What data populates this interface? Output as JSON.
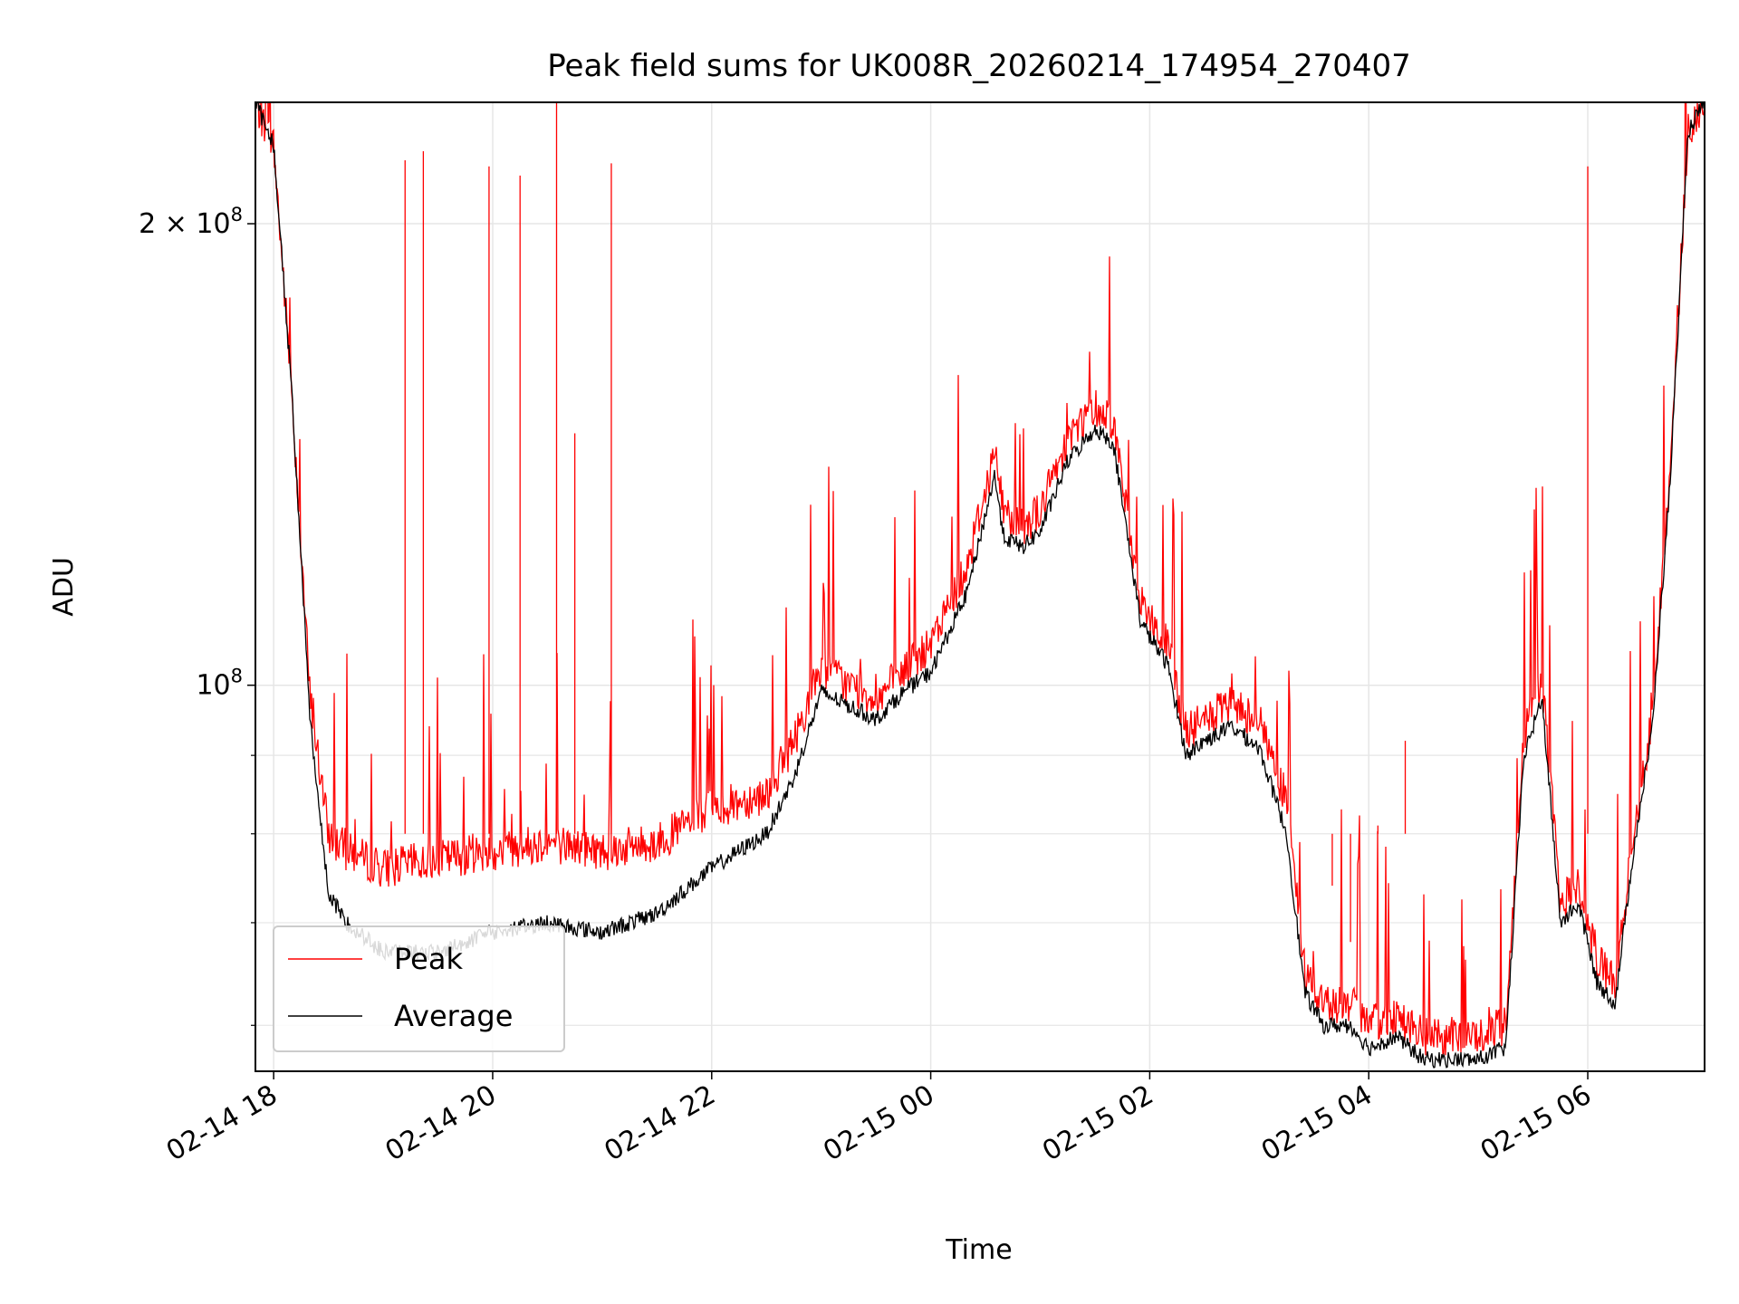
{
  "chart_data": {
    "type": "line",
    "title": "Peak field sums for UK008R_20260214_174954_270407",
    "xlabel": "Time",
    "ylabel": "ADU",
    "yscale": "log",
    "grid": true,
    "legend_position": "lower-left",
    "xlim": [
      "2026-02-14 17:50",
      "2026-02-15 07:04"
    ],
    "ylim": [
      56000000,
      240000000
    ],
    "x_ticks": [
      "02-14 18",
      "02-14 20",
      "02-14 22",
      "02-15 00",
      "02-15 02",
      "02-15 04",
      "02-15 06"
    ],
    "x_tick_times": [
      "2026-02-14 18:00",
      "2026-02-14 20:00",
      "2026-02-14 22:00",
      "2026-02-15 00:00",
      "2026-02-15 02:00",
      "2026-02-15 04:00",
      "2026-02-15 06:00"
    ],
    "y_ticks": [
      {
        "value": 100000000,
        "mantissa": "",
        "exponent": "8"
      },
      {
        "value": 200000000,
        "mantissa": "2",
        "exponent": "8"
      }
    ],
    "y_minor_ticks": [
      60000000,
      70000000,
      80000000,
      90000000
    ],
    "series": [
      {
        "name": "Average",
        "color": "#000000",
        "x": [
          "2026-02-14 17:50",
          "2026-02-14 18:00",
          "2026-02-14 18:10",
          "2026-02-14 18:20",
          "2026-02-14 18:30",
          "2026-02-14 18:40",
          "2026-02-14 19:00",
          "2026-02-14 19:30",
          "2026-02-14 20:00",
          "2026-02-14 20:30",
          "2026-02-14 21:00",
          "2026-02-14 21:30",
          "2026-02-14 22:00",
          "2026-02-14 22:30",
          "2026-02-14 22:45",
          "2026-02-14 23:00",
          "2026-02-14 23:15",
          "2026-02-14 23:30",
          "2026-02-14 23:45",
          "2026-02-15 00:00",
          "2026-02-15 00:20",
          "2026-02-15 00:35",
          "2026-02-15 00:40",
          "2026-02-15 00:50",
          "2026-02-15 01:00",
          "2026-02-15 01:15",
          "2026-02-15 01:30",
          "2026-02-15 01:40",
          "2026-02-15 01:55",
          "2026-02-15 02:10",
          "2026-02-15 02:20",
          "2026-02-15 02:30",
          "2026-02-15 02:45",
          "2026-02-15 03:00",
          "2026-02-15 03:15",
          "2026-02-15 03:25",
          "2026-02-15 03:35",
          "2026-02-15 03:50",
          "2026-02-15 04:00",
          "2026-02-15 04:15",
          "2026-02-15 04:30",
          "2026-02-15 04:45",
          "2026-02-15 05:00",
          "2026-02-15 05:15",
          "2026-02-15 05:25",
          "2026-02-15 05:35",
          "2026-02-15 05:45",
          "2026-02-15 05:55",
          "2026-02-15 06:05",
          "2026-02-15 06:15",
          "2026-02-15 06:25",
          "2026-02-15 06:35",
          "2026-02-15 06:45",
          "2026-02-15 06:55",
          "2026-02-15 07:04"
        ],
        "y": [
          240000000,
          225000000,
          155000000,
          95000000,
          73000000,
          70000000,
          67000000,
          67000000,
          69000000,
          70000000,
          69000000,
          71000000,
          76000000,
          80000000,
          87000000,
          99000000,
          97000000,
          95000000,
          99000000,
          102000000,
          115000000,
          137000000,
          125000000,
          123000000,
          126000000,
          140000000,
          147000000,
          144000000,
          110000000,
          103000000,
          90000000,
          92000000,
          94000000,
          91000000,
          80000000,
          63000000,
          60000000,
          60000000,
          58000000,
          59000000,
          57000000,
          57000000,
          57000000,
          58000000,
          90000000,
          98000000,
          70000000,
          72000000,
          64000000,
          62000000,
          78000000,
          93000000,
          135000000,
          230000000,
          240000000
        ]
      },
      {
        "name": "Peak",
        "color": "#ff0000",
        "x": [
          "2026-02-14 17:50",
          "2026-02-14 18:00",
          "2026-02-14 18:10",
          "2026-02-14 18:20",
          "2026-02-14 18:30",
          "2026-02-14 18:40",
          "2026-02-14 19:00",
          "2026-02-14 19:30",
          "2026-02-14 20:00",
          "2026-02-14 20:30",
          "2026-02-14 21:00",
          "2026-02-14 21:30",
          "2026-02-14 22:00",
          "2026-02-14 22:30",
          "2026-02-14 22:45",
          "2026-02-14 23:00",
          "2026-02-14 23:15",
          "2026-02-14 23:30",
          "2026-02-14 23:45",
          "2026-02-15 00:00",
          "2026-02-15 00:20",
          "2026-02-15 00:35",
          "2026-02-15 00:40",
          "2026-02-15 00:50",
          "2026-02-15 01:00",
          "2026-02-15 01:15",
          "2026-02-15 01:30",
          "2026-02-15 01:40",
          "2026-02-15 01:55",
          "2026-02-15 02:10",
          "2026-02-15 02:20",
          "2026-02-15 02:30",
          "2026-02-15 02:45",
          "2026-02-15 03:00",
          "2026-02-15 03:15",
          "2026-02-15 03:25",
          "2026-02-15 03:35",
          "2026-02-15 03:50",
          "2026-02-15 04:00",
          "2026-02-15 04:15",
          "2026-02-15 04:30",
          "2026-02-15 04:45",
          "2026-02-15 05:00",
          "2026-02-15 05:15",
          "2026-02-15 05:25",
          "2026-02-15 05:35",
          "2026-02-15 05:45",
          "2026-02-15 05:55",
          "2026-02-15 06:05",
          "2026-02-15 06:15",
          "2026-02-15 06:25",
          "2026-02-15 06:35",
          "2026-02-15 06:45",
          "2026-02-15 06:55",
          "2026-02-15 07:04"
        ],
        "y": [
          240000000,
          225000000,
          155000000,
          98000000,
          80000000,
          78000000,
          76000000,
          77000000,
          78000000,
          79000000,
          78000000,
          79000000,
          83000000,
          85000000,
          92000000,
          103000000,
          100000000,
          98000000,
          102000000,
          106000000,
          120000000,
          142000000,
          130000000,
          127000000,
          130000000,
          145000000,
          152000000,
          149000000,
          113000000,
          106000000,
          93000000,
          95000000,
          97000000,
          95000000,
          84000000,
          65000000,
          62000000,
          62000000,
          60000000,
          61000000,
          59000000,
          59000000,
          59000000,
          60000000,
          93000000,
          101000000,
          72000000,
          74000000,
          66000000,
          64000000,
          80000000,
          95000000,
          138000000,
          231000000,
          240000000
        ],
        "spikes": [
          {
            "x": "2026-02-14 19:12",
            "y": 220000000
          },
          {
            "x": "2026-02-14 19:22",
            "y": 223000000
          },
          {
            "x": "2026-02-14 19:58",
            "y": 218000000
          },
          {
            "x": "2026-02-14 20:15",
            "y": 215000000
          },
          {
            "x": "2026-02-14 20:35",
            "y": 240000000
          },
          {
            "x": "2026-02-14 20:45",
            "y": 146000000
          },
          {
            "x": "2026-02-14 21:05",
            "y": 219000000
          },
          {
            "x": "2026-02-15 03:40",
            "y": 74000000
          },
          {
            "x": "2026-02-15 03:50",
            "y": 68000000
          },
          {
            "x": "2026-02-15 04:05",
            "y": 81000000
          },
          {
            "x": "2026-02-15 04:20",
            "y": 92000000
          },
          {
            "x": "2026-02-15 06:00",
            "y": 218000000
          }
        ]
      }
    ]
  }
}
